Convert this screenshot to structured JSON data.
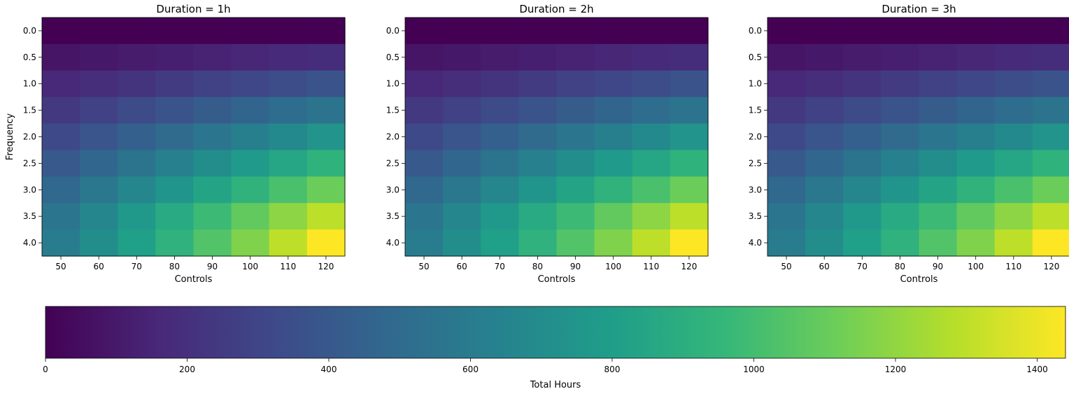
{
  "chart_data": [
    {
      "type": "heatmap",
      "title": "Duration = 1h",
      "xlabel": "Controls",
      "ylabel": "Frequency",
      "x": [
        50,
        60,
        70,
        80,
        90,
        100,
        110,
        120
      ],
      "y": [
        0.0,
        0.5,
        1.0,
        1.5,
        2.0,
        2.5,
        3.0,
        3.5,
        4.0
      ],
      "x_tick_labels": [
        "50",
        "60",
        "70",
        "80",
        "90",
        "100",
        "110",
        "120"
      ],
      "y_tick_labels": [
        "0.0",
        "0.5",
        "1.0",
        "1.5",
        "2.0",
        "2.5",
        "3.0",
        "3.5",
        "4.0"
      ],
      "values": [
        [
          0,
          0,
          0,
          0,
          0,
          0,
          0,
          0
        ],
        [
          80,
          95,
          110,
          125,
          140,
          155,
          170,
          185
        ],
        [
          160,
          190,
          220,
          250,
          280,
          310,
          340,
          370
        ],
        [
          240,
          285,
          330,
          375,
          420,
          465,
          510,
          555
        ],
        [
          320,
          380,
          440,
          500,
          560,
          620,
          680,
          740
        ],
        [
          400,
          475,
          550,
          625,
          700,
          775,
          850,
          925
        ],
        [
          480,
          570,
          660,
          750,
          840,
          930,
          1020,
          1110
        ],
        [
          560,
          665,
          770,
          875,
          980,
          1085,
          1190,
          1295
        ],
        [
          600,
          700,
          810,
          920,
          1040,
          1160,
          1300,
          1440
        ]
      ]
    },
    {
      "type": "heatmap",
      "title": "Duration = 2h",
      "xlabel": "Controls",
      "ylabel": "",
      "x": [
        50,
        60,
        70,
        80,
        90,
        100,
        110,
        120
      ],
      "y": [
        0.0,
        0.5,
        1.0,
        1.5,
        2.0,
        2.5,
        3.0,
        3.5,
        4.0
      ],
      "x_tick_labels": [
        "50",
        "60",
        "70",
        "80",
        "90",
        "100",
        "110",
        "120"
      ],
      "y_tick_labels": [
        "0.0",
        "0.5",
        "1.0",
        "1.5",
        "2.0",
        "2.5",
        "3.0",
        "3.5",
        "4.0"
      ],
      "values": [
        [
          0,
          0,
          0,
          0,
          0,
          0,
          0,
          0
        ],
        [
          80,
          95,
          110,
          125,
          140,
          155,
          170,
          185
        ],
        [
          160,
          190,
          220,
          250,
          280,
          310,
          340,
          370
        ],
        [
          240,
          285,
          330,
          375,
          420,
          465,
          510,
          555
        ],
        [
          320,
          380,
          440,
          500,
          560,
          620,
          680,
          740
        ],
        [
          400,
          475,
          550,
          625,
          700,
          775,
          850,
          925
        ],
        [
          480,
          570,
          660,
          750,
          840,
          930,
          1020,
          1110
        ],
        [
          560,
          665,
          770,
          875,
          980,
          1085,
          1190,
          1295
        ],
        [
          600,
          700,
          810,
          920,
          1040,
          1160,
          1300,
          1440
        ]
      ]
    },
    {
      "type": "heatmap",
      "title": "Duration = 3h",
      "xlabel": "Controls",
      "ylabel": "",
      "x": [
        50,
        60,
        70,
        80,
        90,
        100,
        110,
        120
      ],
      "y": [
        0.0,
        0.5,
        1.0,
        1.5,
        2.0,
        2.5,
        3.0,
        3.5,
        4.0
      ],
      "x_tick_labels": [
        "50",
        "60",
        "70",
        "80",
        "90",
        "100",
        "110",
        "120"
      ],
      "y_tick_labels": [
        "0.0",
        "0.5",
        "1.0",
        "1.5",
        "2.0",
        "2.5",
        "3.0",
        "3.5",
        "4.0"
      ],
      "values": [
        [
          0,
          0,
          0,
          0,
          0,
          0,
          0,
          0
        ],
        [
          80,
          95,
          110,
          125,
          140,
          155,
          170,
          185
        ],
        [
          160,
          190,
          220,
          250,
          280,
          310,
          340,
          370
        ],
        [
          240,
          285,
          330,
          375,
          420,
          465,
          510,
          555
        ],
        [
          320,
          380,
          440,
          500,
          560,
          620,
          680,
          740
        ],
        [
          400,
          475,
          550,
          625,
          700,
          775,
          850,
          925
        ],
        [
          480,
          570,
          660,
          750,
          840,
          930,
          1020,
          1110
        ],
        [
          560,
          665,
          770,
          875,
          980,
          1085,
          1190,
          1295
        ],
        [
          600,
          700,
          810,
          920,
          1040,
          1160,
          1300,
          1440
        ]
      ]
    }
  ],
  "colorbar": {
    "label": "Total Hours",
    "range": [
      0,
      1440
    ],
    "ticks": [
      0,
      200,
      400,
      600,
      800,
      1000,
      1200,
      1400
    ],
    "tick_labels": [
      "0",
      "200",
      "400",
      "600",
      "800",
      "1000",
      "1200",
      "1400"
    ],
    "colormap": "viridis",
    "placement": "bottom"
  },
  "colors": {
    "viridis": [
      "#440154",
      "#482878",
      "#3e4989",
      "#31688e",
      "#26828e",
      "#1f9e89",
      "#35b779",
      "#6ece58",
      "#b5de2b",
      "#fde725"
    ]
  }
}
